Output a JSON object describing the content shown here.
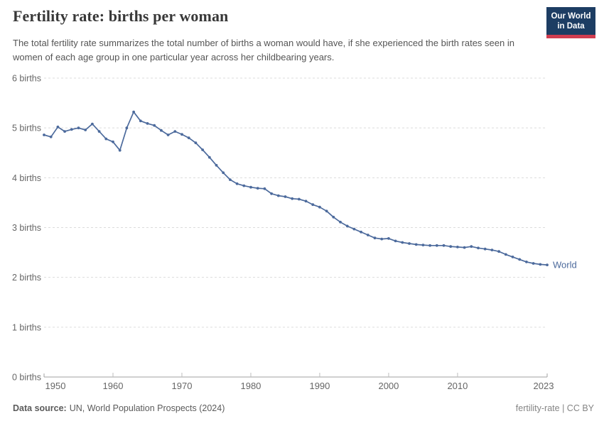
{
  "header": {
    "title": "Fertility rate: births per woman",
    "subtitle": "The total fertility rate summarizes the total number of births a woman would have, if she experienced the birth rates seen in women of each age group in one particular year across her childbearing years.",
    "logo": {
      "line1": "Our World",
      "line2": "in Data",
      "bg_color": "#1d3d63",
      "stripe_color": "#d13d50"
    }
  },
  "footer": {
    "source_label": "Data source:",
    "source_text": "UN, World Population Prospects (2024)",
    "right_text": "fertility-rate | CC BY"
  },
  "colors": {
    "line": "#4C6A9C",
    "grid": "#dcdcdc",
    "axis": "#a0a0a0",
    "tick_text": "#666666"
  },
  "chart_data": {
    "type": "line",
    "title": "Fertility rate: births per woman",
    "xlabel": "",
    "ylabel": "",
    "xlim": [
      1950,
      2023
    ],
    "ylim": [
      0,
      6
    ],
    "x_ticks": [
      1950,
      1960,
      1970,
      1980,
      1990,
      2000,
      2010,
      2023
    ],
    "y_ticks": [
      0,
      1,
      2,
      3,
      4,
      5,
      6
    ],
    "y_tick_suffix": " births",
    "grid": "horizontal-dashed",
    "legend_position": "end-of-line",
    "series": [
      {
        "name": "World",
        "color": "#4C6A9C",
        "year_start": 1950,
        "year_step": 1,
        "values": [
          4.86,
          4.82,
          5.02,
          4.93,
          4.97,
          5.0,
          4.96,
          5.08,
          4.93,
          4.78,
          4.72,
          4.55,
          5.0,
          5.32,
          5.14,
          5.09,
          5.05,
          4.95,
          4.86,
          4.93,
          4.87,
          4.8,
          4.7,
          4.56,
          4.41,
          4.25,
          4.1,
          3.96,
          3.88,
          3.84,
          3.81,
          3.79,
          3.78,
          3.68,
          3.64,
          3.62,
          3.58,
          3.57,
          3.53,
          3.46,
          3.41,
          3.33,
          3.21,
          3.11,
          3.03,
          2.97,
          2.91,
          2.85,
          2.79,
          2.77,
          2.78,
          2.73,
          2.7,
          2.68,
          2.66,
          2.65,
          2.64,
          2.64,
          2.64,
          2.62,
          2.61,
          2.6,
          2.62,
          2.59,
          2.57,
          2.55,
          2.52,
          2.46,
          2.41,
          2.36,
          2.31,
          2.28,
          2.26,
          2.25
        ]
      }
    ]
  }
}
